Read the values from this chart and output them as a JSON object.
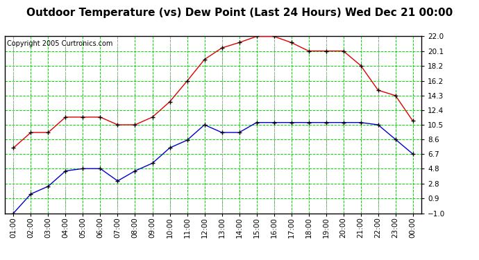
{
  "title": "Outdoor Temperature (vs) Dew Point (Last 24 Hours) Wed Dec 21 00:00",
  "copyright": "Copyright 2005 Curtronics.com",
  "x_labels": [
    "01:00",
    "02:00",
    "03:00",
    "04:00",
    "05:00",
    "06:00",
    "07:00",
    "08:00",
    "09:00",
    "10:00",
    "11:00",
    "12:00",
    "13:00",
    "14:00",
    "15:00",
    "16:00",
    "17:00",
    "18:00",
    "19:00",
    "20:00",
    "21:00",
    "22:00",
    "23:00",
    "00:00"
  ],
  "temp_red": [
    7.5,
    9.5,
    9.5,
    11.5,
    11.5,
    11.5,
    10.5,
    10.5,
    11.5,
    13.5,
    16.2,
    19.0,
    20.5,
    21.2,
    22.0,
    22.0,
    21.2,
    20.1,
    20.1,
    20.1,
    18.2,
    15.0,
    14.3,
    11.0
  ],
  "dew_blue": [
    -1.0,
    1.5,
    2.5,
    4.5,
    4.8,
    4.8,
    3.2,
    4.5,
    5.5,
    7.5,
    8.5,
    10.5,
    9.5,
    9.5,
    10.8,
    10.8,
    10.8,
    10.8,
    10.8,
    10.8,
    10.8,
    10.5,
    8.6,
    6.7
  ],
  "y_ticks": [
    -1.0,
    0.9,
    2.8,
    4.8,
    6.7,
    8.6,
    10.5,
    12.4,
    14.3,
    16.2,
    18.2,
    20.1,
    22.0
  ],
  "ylim": [
    -1.0,
    22.0
  ],
  "bg_color": "#ffffff",
  "plot_bg_color": "#ffffff",
  "grid_green_color": "#00dd00",
  "grid_gray_color": "#aaaaaa",
  "red_color": "#dd0000",
  "blue_color": "#0000cc",
  "title_fontsize": 11,
  "copyright_fontsize": 7,
  "tick_fontsize": 7.5
}
